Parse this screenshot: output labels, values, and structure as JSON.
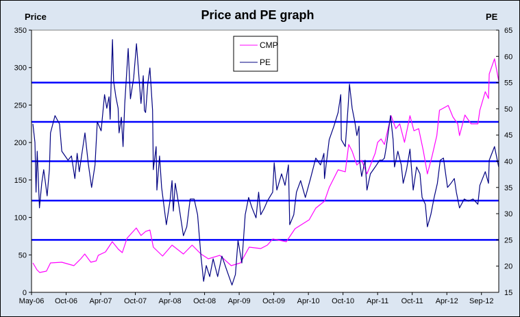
{
  "chart_data": {
    "type": "line",
    "title": "Price and PE graph",
    "ylabel": "Price",
    "y2label": "PE",
    "ylim": [
      0,
      350
    ],
    "y2lim": [
      15,
      65
    ],
    "yticks": [
      "0",
      "50",
      "100",
      "150",
      "200",
      "250",
      "300",
      "350"
    ],
    "y2ticks": [
      "15",
      "20",
      "25",
      "30",
      "35",
      "40",
      "45",
      "50",
      "55",
      "60",
      "65"
    ],
    "xtick_labels": [
      "May-06",
      "Oct-06",
      "Apr-07",
      "Oct-07",
      "Apr-08",
      "Oct-08",
      "Apr-09",
      "Oct-09",
      "Apr-10",
      "Oct-10",
      "Apr-11",
      "Oct-11",
      "Apr-12",
      "Sep-12"
    ],
    "grid": false,
    "legend_placement": "top-center",
    "reference_lines_pe": [
      25,
      32.5,
      40,
      47.5,
      55
    ],
    "colors": {
      "CMP": "#ff00ff",
      "PE": "#000080",
      "reference": "#0000ff",
      "background": "#dce6f2",
      "plot": "#ffffff"
    },
    "series": [
      {
        "name": "CMP",
        "axis": "left",
        "points": [
          [
            "2006-05-07",
            39.3
          ],
          [
            "2006-05-25",
            30.2
          ],
          [
            "2006-06-06",
            26.5
          ],
          [
            "2006-07-06",
            28.3
          ],
          [
            "2006-07-24",
            39.3
          ],
          [
            "2006-09-12",
            40.2
          ],
          [
            "2006-11-11",
            35.6
          ],
          [
            "2006-12-17",
            44.8
          ],
          [
            "2007-01-07",
            51.2
          ],
          [
            "2007-02-08",
            40.2
          ],
          [
            "2007-03-08",
            42.0
          ],
          [
            "2007-03-19",
            49.4
          ],
          [
            "2007-04-26",
            53.9
          ],
          [
            "2007-06-01",
            67.6
          ],
          [
            "2007-07-03",
            57.6
          ],
          [
            "2007-07-24",
            53.0
          ],
          [
            "2007-08-18",
            72.2
          ],
          [
            "2007-10-06",
            85.9
          ],
          [
            "2007-10-31",
            75.9
          ],
          [
            "2007-11-25",
            81.4
          ],
          [
            "2007-12-17",
            83.2
          ],
          [
            "2008-01-04",
            60.3
          ],
          [
            "2008-02-22",
            48.4
          ],
          [
            "2008-04-12",
            63.1
          ],
          [
            "2008-06-11",
            51.2
          ],
          [
            "2008-07-27",
            63.1
          ],
          [
            "2008-09-12",
            51.2
          ],
          [
            "2008-10-21",
            44.8
          ],
          [
            "2008-12-20",
            49.4
          ],
          [
            "2009-02-18",
            35.6
          ],
          [
            "2009-04-08",
            39.3
          ],
          [
            "2009-05-24",
            60.3
          ],
          [
            "2009-07-24",
            58.5
          ],
          [
            "2009-08-28",
            63.1
          ],
          [
            "2009-09-26",
            71.3
          ],
          [
            "2009-12-06",
            67.6
          ],
          [
            "2010-01-21",
            85.0
          ],
          [
            "2010-04-05",
            96.9
          ],
          [
            "2010-05-10",
            112.4
          ],
          [
            "2010-06-25",
            121.6
          ],
          [
            "2010-07-20",
            139.9
          ],
          [
            "2010-09-05",
            163.6
          ],
          [
            "2010-10-13",
            160.9
          ],
          [
            "2010-10-31",
            197.4
          ],
          [
            "2010-11-18",
            188.3
          ],
          [
            "2010-12-13",
            170.0
          ],
          [
            "2011-01-07",
            176.4
          ],
          [
            "2011-02-04",
            158.1
          ],
          [
            "2011-03-19",
            185.6
          ],
          [
            "2011-04-01",
            200.2
          ],
          [
            "2011-04-19",
            204.8
          ],
          [
            "2011-05-07",
            197.4
          ],
          [
            "2011-06-11",
            235.8
          ],
          [
            "2011-07-06",
            218.5
          ],
          [
            "2011-07-27",
            224.9
          ],
          [
            "2011-08-21",
            200.2
          ],
          [
            "2011-09-19",
            235.8
          ],
          [
            "2011-10-10",
            215.7
          ],
          [
            "2011-11-04",
            218.5
          ],
          [
            "2011-11-29",
            188.3
          ],
          [
            "2011-12-20",
            158.1
          ],
          [
            "2012-01-14",
            181.9
          ],
          [
            "2012-02-08",
            209.3
          ],
          [
            "2012-02-22",
            243.1
          ],
          [
            "2012-03-14",
            245.9
          ],
          [
            "2012-04-07",
            249.5
          ],
          [
            "2012-04-28",
            234.0
          ],
          [
            "2012-05-19",
            224.9
          ],
          [
            "2012-05-27",
            209.3
          ],
          [
            "2012-06-20",
            236.7
          ],
          [
            "2012-07-17",
            224.9
          ],
          [
            "2012-08-16",
            224.9
          ],
          [
            "2012-08-25",
            243.1
          ],
          [
            "2012-09-21",
            267.8
          ],
          [
            "2012-10-08",
            258.7
          ],
          [
            "2012-10-12",
            291.6
          ],
          [
            "2012-11-09",
            311.7
          ],
          [
            "2012-12-01",
            282.4
          ]
        ]
      },
      {
        "name": "PE",
        "axis": "right",
        "points": [
          [
            "2006-05-07",
            47.1
          ],
          [
            "2006-05-16",
            43.6
          ],
          [
            "2006-05-21",
            34.1
          ],
          [
            "2006-05-26",
            41.9
          ],
          [
            "2006-06-05",
            31.1
          ],
          [
            "2006-06-15",
            35.8
          ],
          [
            "2006-06-24",
            38.4
          ],
          [
            "2006-07-09",
            33.4
          ],
          [
            "2006-07-19",
            38.4
          ],
          [
            "2006-07-24",
            45.4
          ],
          [
            "2006-08-13",
            48.7
          ],
          [
            "2006-09-02",
            47.1
          ],
          [
            "2006-09-12",
            41.9
          ],
          [
            "2006-10-11",
            40.2
          ],
          [
            "2006-10-29",
            41.0
          ],
          [
            "2006-11-16",
            36.7
          ],
          [
            "2006-11-28",
            41.5
          ],
          [
            "2006-12-09",
            38.0
          ],
          [
            "2007-01-08",
            45.4
          ],
          [
            "2007-01-25",
            39.7
          ],
          [
            "2007-02-12",
            35.0
          ],
          [
            "2007-03-02",
            39.3
          ],
          [
            "2007-03-14",
            47.5
          ],
          [
            "2007-04-03",
            45.8
          ],
          [
            "2007-04-21",
            52.7
          ],
          [
            "2007-05-03",
            50.1
          ],
          [
            "2007-05-15",
            52.3
          ],
          [
            "2007-05-21",
            48.0
          ],
          [
            "2007-05-27",
            56.3
          ],
          [
            "2007-06-02",
            63.2
          ],
          [
            "2007-06-08",
            55.3
          ],
          [
            "2007-06-20",
            52.3
          ],
          [
            "2007-07-02",
            50.1
          ],
          [
            "2007-07-07",
            45.4
          ],
          [
            "2007-07-19",
            48.4
          ],
          [
            "2007-07-28",
            42.8
          ],
          [
            "2007-08-06",
            51.0
          ],
          [
            "2007-08-24",
            61.5
          ],
          [
            "2007-09-05",
            51.9
          ],
          [
            "2007-09-22",
            55.9
          ],
          [
            "2007-10-07",
            62.4
          ],
          [
            "2007-10-19",
            56.6
          ],
          [
            "2007-10-31",
            51.0
          ],
          [
            "2007-11-12",
            56.3
          ],
          [
            "2007-11-18",
            49.7
          ],
          [
            "2007-11-24",
            49.3
          ],
          [
            "2007-12-06",
            54.9
          ],
          [
            "2007-12-17",
            57.8
          ],
          [
            "2007-12-31",
            49.7
          ],
          [
            "2008-01-04",
            38.4
          ],
          [
            "2008-01-19",
            42.8
          ],
          [
            "2008-01-23",
            34.5
          ],
          [
            "2008-02-06",
            41.0
          ],
          [
            "2008-02-17",
            35.0
          ],
          [
            "2008-03-13",
            27.9
          ],
          [
            "2008-04-01",
            32.4
          ],
          [
            "2008-04-12",
            36.3
          ],
          [
            "2008-04-19",
            30.5
          ],
          [
            "2008-04-29",
            35.8
          ],
          [
            "2008-05-17",
            31.8
          ],
          [
            "2008-06-11",
            25.8
          ],
          [
            "2008-06-29",
            27.5
          ],
          [
            "2008-07-17",
            32.8
          ],
          [
            "2008-08-07",
            32.8
          ],
          [
            "2008-08-25",
            29.8
          ],
          [
            "2008-09-12",
            21.9
          ],
          [
            "2008-09-26",
            17.1
          ],
          [
            "2008-10-10",
            20.1
          ],
          [
            "2008-10-28",
            18.0
          ],
          [
            "2008-11-15",
            21.4
          ],
          [
            "2008-12-09",
            18.0
          ],
          [
            "2008-12-31",
            21.9
          ],
          [
            "2009-01-25",
            19.3
          ],
          [
            "2009-02-22",
            16.4
          ],
          [
            "2009-03-12",
            18.4
          ],
          [
            "2009-03-26",
            24.9
          ],
          [
            "2009-04-15",
            20.6
          ],
          [
            "2009-05-03",
            29.8
          ],
          [
            "2009-05-21",
            33.1
          ],
          [
            "2009-06-08",
            31.1
          ],
          [
            "2009-06-29",
            29.2
          ],
          [
            "2009-07-13",
            34.1
          ],
          [
            "2009-07-24",
            29.8
          ],
          [
            "2009-08-11",
            31.0
          ],
          [
            "2009-08-28",
            32.4
          ],
          [
            "2009-09-15",
            33.5
          ],
          [
            "2009-09-25",
            34.1
          ],
          [
            "2009-10-03",
            39.7
          ],
          [
            "2009-10-17",
            34.5
          ],
          [
            "2009-11-11",
            37.6
          ],
          [
            "2009-11-29",
            35.4
          ],
          [
            "2009-12-17",
            39.3
          ],
          [
            "2009-12-24",
            27.9
          ],
          [
            "2010-01-14",
            29.8
          ],
          [
            "2010-01-28",
            34.1
          ],
          [
            "2010-02-19",
            36.3
          ],
          [
            "2010-03-16",
            33.1
          ],
          [
            "2010-04-12",
            36.7
          ],
          [
            "2010-05-10",
            40.6
          ],
          [
            "2010-06-04",
            39.3
          ],
          [
            "2010-06-22",
            41.5
          ],
          [
            "2010-06-25",
            36.7
          ],
          [
            "2010-07-20",
            44.1
          ],
          [
            "2010-08-14",
            46.7
          ],
          [
            "2010-09-05",
            49.3
          ],
          [
            "2010-09-19",
            52.7
          ],
          [
            "2010-09-22",
            44.1
          ],
          [
            "2010-10-13",
            42.8
          ],
          [
            "2010-10-28",
            50.6
          ],
          [
            "2010-11-04",
            54.7
          ],
          [
            "2010-11-18",
            50.1
          ],
          [
            "2010-12-02",
            47.5
          ],
          [
            "2010-12-13",
            44.9
          ],
          [
            "2010-12-24",
            46.7
          ],
          [
            "2010-12-27",
            40.2
          ],
          [
            "2011-01-07",
            37.1
          ],
          [
            "2011-01-25",
            40.2
          ],
          [
            "2011-02-04",
            34.5
          ],
          [
            "2011-02-22",
            37.6
          ],
          [
            "2011-03-19",
            38.9
          ],
          [
            "2011-04-12",
            40.2
          ],
          [
            "2011-04-26",
            40.2
          ],
          [
            "2011-05-07",
            40.6
          ],
          [
            "2011-05-17",
            42.8
          ],
          [
            "2011-06-08",
            48.7
          ],
          [
            "2011-06-22",
            44.1
          ],
          [
            "2011-06-29",
            38.9
          ],
          [
            "2011-07-17",
            41.9
          ],
          [
            "2011-08-04",
            39.3
          ],
          [
            "2011-08-14",
            35.8
          ],
          [
            "2011-09-01",
            38.4
          ],
          [
            "2011-09-19",
            42.3
          ],
          [
            "2011-10-06",
            34.5
          ],
          [
            "2011-10-24",
            38.9
          ],
          [
            "2011-11-11",
            37.6
          ],
          [
            "2011-11-22",
            33.1
          ],
          [
            "2011-12-09",
            31.8
          ],
          [
            "2011-12-20",
            27.5
          ],
          [
            "2012-01-07",
            29.8
          ],
          [
            "2012-01-25",
            33.1
          ],
          [
            "2012-02-11",
            35.8
          ],
          [
            "2012-02-26",
            40.2
          ],
          [
            "2012-03-14",
            40.6
          ],
          [
            "2012-04-04",
            35.0
          ],
          [
            "2012-04-19",
            35.8
          ],
          [
            "2012-05-04",
            36.7
          ],
          [
            "2012-05-13",
            34.1
          ],
          [
            "2012-05-27",
            31.1
          ],
          [
            "2012-06-17",
            32.8
          ],
          [
            "2012-07-05",
            32.4
          ],
          [
            "2012-07-26",
            32.8
          ],
          [
            "2012-08-16",
            31.8
          ],
          [
            "2012-08-25",
            35.4
          ],
          [
            "2012-09-21",
            38.0
          ],
          [
            "2012-10-08",
            35.8
          ],
          [
            "2012-10-12",
            40.2
          ],
          [
            "2012-11-09",
            42.8
          ],
          [
            "2012-12-01",
            38.9
          ]
        ]
      }
    ]
  }
}
